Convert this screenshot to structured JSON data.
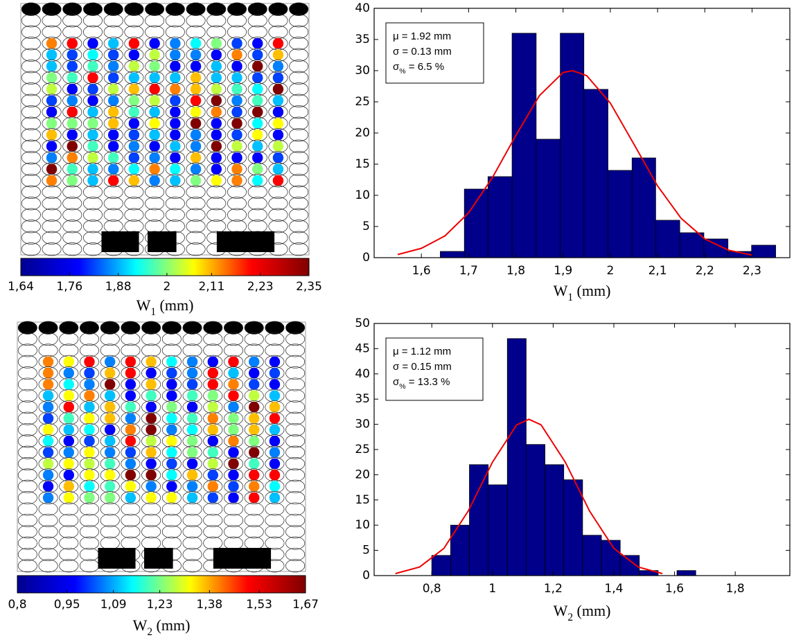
{
  "chart_data": [
    {
      "type": "colorbar",
      "colors": [
        "#00008f",
        "#0000ff",
        "#00ffff",
        "#ffff00",
        "#ff0000",
        "#800000"
      ],
      "lim": [
        1.64,
        2.35
      ],
      "ticks": [
        {
          "value": 1.64,
          "label": "1,64"
        },
        {
          "value": 1.76,
          "label": "1,76"
        },
        {
          "value": 1.88,
          "label": "1,88"
        },
        2,
        {
          "value": 2.11,
          "label": "2,11"
        },
        {
          "value": 2.23,
          "label": "2,23"
        },
        {
          "value": 2.35,
          "label": "2,35"
        }
      ],
      "x_label": [
        "W",
        "1",
        " (mm)"
      ]
    },
    {
      "type": "histogram",
      "color": "#00008b",
      "bins": [
        1.64,
        1.691,
        1.741,
        1.792,
        1.843,
        1.894,
        1.944,
        1.995,
        2.046,
        2.096,
        2.147,
        2.198,
        2.249,
        2.299,
        2.35
      ],
      "values": [
        1,
        11,
        13,
        36,
        19,
        36,
        27,
        14,
        16,
        6,
        4,
        3,
        1,
        2
      ],
      "xlim": [
        1.5,
        2.38
      ],
      "ylim": [
        0,
        40
      ],
      "xticks": [
        {
          "value": 1.6,
          "label": "1,6"
        },
        {
          "value": 1.7,
          "label": "1,7"
        },
        {
          "value": 1.8,
          "label": "1,8"
        },
        {
          "value": 1.9,
          "label": "1,9"
        },
        2,
        {
          "value": 2.1,
          "label": "2,1"
        },
        {
          "value": 2.2,
          "label": "2,2"
        },
        {
          "value": 2.3,
          "label": "2,3"
        }
      ],
      "yticks": [
        0,
        5,
        10,
        15,
        20,
        25,
        30,
        35,
        40
      ],
      "x_label": [
        "W",
        "1",
        " (mm)"
      ],
      "stats": [
        "μ = 1.92 mm",
        "σ = 0.13 mm",
        [
          "σ",
          "%",
          " = 6.5 %"
        ]
      ],
      "fit": {
        "color": "#ee0000",
        "x": [
          1.55,
          1.6,
          1.65,
          1.7,
          1.75,
          1.8,
          1.85,
          1.9,
          1.92,
          1.95,
          2.0,
          2.05,
          2.1,
          2.15,
          2.2,
          2.25,
          2.3
        ],
        "values": [
          0.5,
          1.5,
          3.5,
          7.2,
          12.8,
          19.6,
          26.0,
          29.7,
          30,
          29.2,
          24.8,
          18.2,
          11.5,
          6.3,
          3.0,
          1.2,
          0.4
        ]
      }
    },
    {
      "type": "colorbar",
      "colors": [
        "#00008f",
        "#0000ff",
        "#00ffff",
        "#ffff00",
        "#ff0000",
        "#800000"
      ],
      "lim": [
        0.8,
        1.67
      ],
      "ticks": [
        {
          "value": 0.8,
          "label": "0,8"
        },
        {
          "value": 0.95,
          "label": "0,95"
        },
        {
          "value": 1.09,
          "label": "1,09"
        },
        {
          "value": 1.23,
          "label": "1,23"
        },
        {
          "value": 1.38,
          "label": "1,38"
        },
        {
          "value": 1.53,
          "label": "1,53"
        },
        {
          "value": 1.67,
          "label": "1,67"
        }
      ],
      "x_label": [
        "W",
        "2",
        " (mm)"
      ]
    },
    {
      "type": "histogram",
      "color": "#00008b",
      "bins": [
        0.8,
        0.862,
        0.924,
        0.986,
        1.049,
        1.111,
        1.173,
        1.235,
        1.297,
        1.359,
        1.421,
        1.484,
        1.546,
        1.608,
        1.67
      ],
      "values": [
        4,
        10,
        22,
        18,
        47,
        26,
        22,
        19,
        8,
        7,
        4,
        1,
        0,
        1
      ],
      "xlim": [
        0.61,
        1.98
      ],
      "ylim": [
        0,
        50
      ],
      "xticks": [
        {
          "value": 0.8,
          "label": "0,8"
        },
        1,
        {
          "value": 1.2,
          "label": "1,2"
        },
        {
          "value": 1.4,
          "label": "1,4"
        },
        {
          "value": 1.6,
          "label": "1,6"
        },
        {
          "value": 1.8,
          "label": "1,8"
        }
      ],
      "yticks": [
        0,
        5,
        10,
        15,
        20,
        25,
        30,
        35,
        40,
        45,
        50
      ],
      "x_label": [
        "W",
        "2",
        " (mm)"
      ],
      "stats": [
        "μ = 1.12 mm",
        "σ = 0.15 mm",
        [
          "σ",
          "%",
          " = 13.3 %"
        ]
      ],
      "fit": {
        "color": "#ee0000",
        "x": [
          0.68,
          0.76,
          0.84,
          0.92,
          1.0,
          1.08,
          1.12,
          1.16,
          1.24,
          1.32,
          1.4,
          1.48,
          1.56
        ],
        "values": [
          0.4,
          1.7,
          5.4,
          12.8,
          22.5,
          29.9,
          31,
          29.9,
          22.5,
          12.8,
          5.4,
          1.7,
          0.4
        ]
      }
    }
  ]
}
